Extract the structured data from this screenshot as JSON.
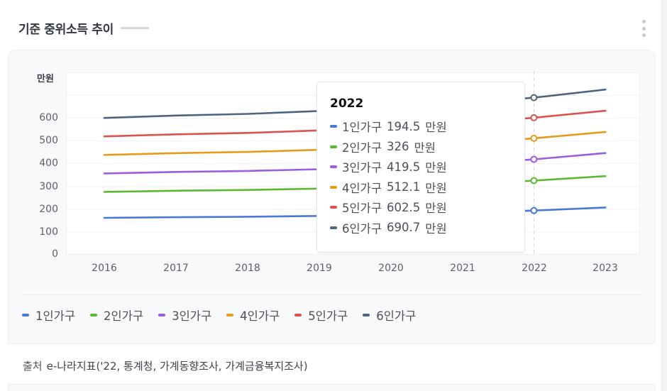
{
  "header": {
    "title": "기준 중위소득 추이",
    "menu_icon": "kebab-menu-icon"
  },
  "chart": {
    "unit_label": "만원",
    "y_ticks": [
      "600",
      "500",
      "400",
      "300",
      "200",
      "100",
      "0"
    ],
    "x_ticks": [
      "2016",
      "2017",
      "2018",
      "2019",
      "2020",
      "2021",
      "2022",
      "2023"
    ]
  },
  "tooltip": {
    "year": "2022",
    "unit": "만원",
    "rows": [
      {
        "label": "1인가구",
        "value": "194.5",
        "color": "#4a78d9"
      },
      {
        "label": "2인가구",
        "value": "326",
        "color": "#5cb82e"
      },
      {
        "label": "3인가구",
        "value": "419.5",
        "color": "#9b5ce0"
      },
      {
        "label": "4인가구",
        "value": "512.1",
        "color": "#e59c1c"
      },
      {
        "label": "5인가구",
        "value": "602.5",
        "color": "#d9534f"
      },
      {
        "label": "6인가구",
        "value": "690.7",
        "color": "#4e6580"
      }
    ]
  },
  "legend": [
    {
      "label": "1인가구",
      "color": "#4a78d9"
    },
    {
      "label": "2인가구",
      "color": "#5cb82e"
    },
    {
      "label": "3인가구",
      "color": "#9b5ce0"
    },
    {
      "label": "4인가구",
      "color": "#e59c1c"
    },
    {
      "label": "5인가구",
      "color": "#d9534f"
    },
    {
      "label": "6인가구",
      "color": "#4e6580"
    }
  ],
  "source": {
    "label": "출처",
    "text": "e-나라지표('22, 통계청, 가계동향조사, 가계금융복지조사)"
  },
  "chart_data": {
    "type": "line",
    "title": "기준 중위소득 추이",
    "xlabel": "",
    "ylabel": "만원",
    "ylim": [
      0,
      800
    ],
    "y_ticks": [
      0,
      100,
      200,
      300,
      400,
      500,
      600
    ],
    "grid": true,
    "legend_position": "bottom",
    "categories": [
      "2016",
      "2017",
      "2018",
      "2019",
      "2020",
      "2021",
      "2022",
      "2023"
    ],
    "highlighted_category": "2022",
    "series": [
      {
        "name": "1인가구",
        "color": "#4a78d9",
        "values": [
          162.4,
          165.2,
          167.2,
          170.7,
          175.7,
          182.8,
          194.5,
          207.8
        ]
      },
      {
        "name": "2인가구",
        "color": "#5cb82e",
        "values": [
          276.5,
          281.4,
          284.8,
          290.7,
          299.1,
          308.8,
          326.0,
          345.6
        ]
      },
      {
        "name": "3인가구",
        "color": "#9b5ce0",
        "values": [
          357.7,
          364.0,
          368.5,
          376.1,
          387.0,
          398.4,
          419.5,
          447.0
        ]
      },
      {
        "name": "4인가구",
        "color": "#e59c1c",
        "values": [
          439.0,
          446.7,
          452.0,
          461.4,
          474.9,
          487.6,
          512.1,
          540.1
        ]
      },
      {
        "name": "5인가구",
        "color": "#d9534f",
        "values": [
          520.3,
          529.5,
          535.6,
          546.7,
          562.8,
          576.7,
          602.5,
          633.2
        ]
      },
      {
        "name": "6인가구",
        "color": "#4e6580",
        "values": [
          601.5,
          612.2,
          619.2,
          632.0,
          650.6,
          665.9,
          690.7,
          726.4
        ]
      }
    ]
  }
}
